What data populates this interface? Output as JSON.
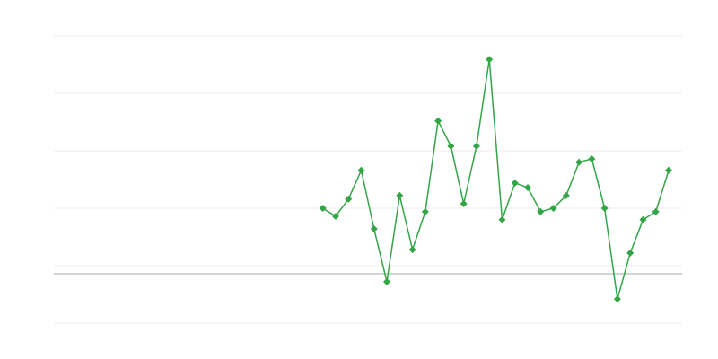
{
  "chart_data": {
    "type": "line",
    "categories": [
      null,
      null,
      null,
      null,
      null,
      null,
      null,
      null,
      null,
      null,
      null,
      null,
      null,
      null,
      null,
      null,
      null,
      null,
      null,
      null,
      null,
      null,
      null,
      null,
      null,
      null,
      null,
      null,
      null,
      null,
      null,
      null,
      null,
      null,
      null,
      null,
      null,
      null,
      null,
      null,
      null,
      null,
      null,
      null,
      null,
      null,
      null,
      null,
      null
    ],
    "values": [
      null,
      null,
      null,
      null,
      null,
      null,
      null,
      null,
      null,
      null,
      null,
      null,
      null,
      null,
      null,
      null,
      null,
      null,
      null,
      null,
      null,
      11.4,
      10.0,
      13.0,
      18.0,
      7.8,
      -1.4,
      13.6,
      4.2,
      10.8,
      26.6,
      22.2,
      12.2,
      22.2,
      37.3,
      9.4,
      15.8,
      15.0,
      10.8,
      11.4,
      13.6,
      19.4,
      20.0,
      11.4,
      -4.4,
      3.6,
      9.4,
      10.8,
      18.0
    ],
    "color": "#34a547",
    "ylim": [
      -8.6,
      41.4
    ],
    "yticks": [
      -8.6,
      1.4,
      11.4,
      21.4,
      31.4,
      41.4
    ],
    "grid": true,
    "zero_line": true,
    "marker": "diamond"
  }
}
